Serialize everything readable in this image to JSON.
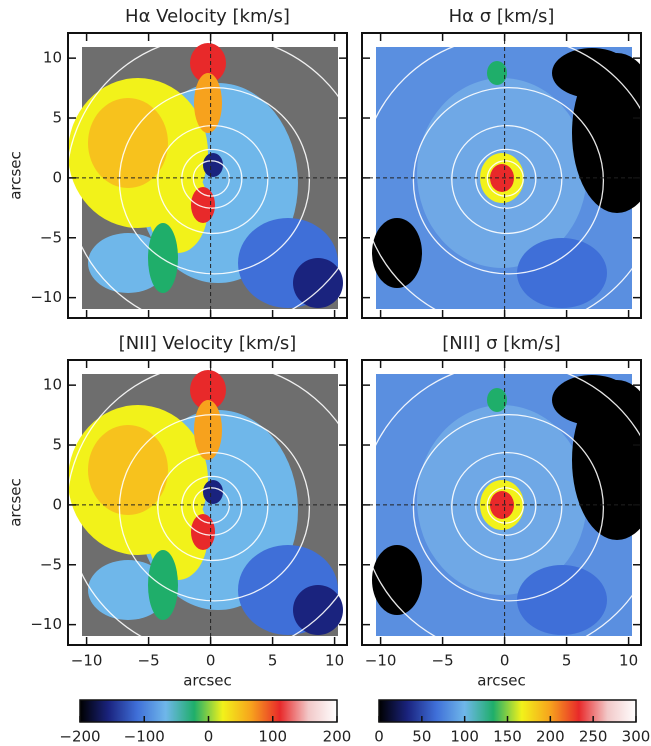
{
  "chart_data": [
    {
      "type": "heatmap",
      "title": "Hα Velocity [km/s]",
      "ylabel": "arcsec",
      "xlim": [
        -11.5,
        11
      ],
      "ylim": [
        -11.7,
        12.1
      ],
      "xticks": [
        -10,
        -5,
        0,
        5,
        10
      ],
      "xtick_labels": false,
      "yticks": [
        {
          "value": -10,
          "label": "−10"
        },
        {
          "value": -5,
          "label": "−5"
        },
        0,
        5,
        10
      ],
      "ytick_labels": true
    },
    {
      "type": "heatmap",
      "title": "Hα σ [km/s]",
      "xlim": [
        -11.5,
        11
      ],
      "ylim": [
        -11.7,
        12.1
      ],
      "xticks": [
        -10,
        -5,
        0,
        5,
        10
      ],
      "xtick_labels": false,
      "yticks": [
        -10,
        -5,
        0,
        5,
        10
      ],
      "ytick_labels": false
    },
    {
      "type": "heatmap",
      "title": "[NII] Velocity [km/s]",
      "ylabel": "arcsec",
      "xlabel": "arcsec",
      "xlim": [
        -11.5,
        11
      ],
      "ylim": [
        -11.7,
        12.1
      ],
      "xticks": [
        {
          "value": -10,
          "label": "−10"
        },
        {
          "value": -5,
          "label": "−5"
        },
        0,
        5,
        10
      ],
      "xtick_labels": true,
      "yticks": [
        {
          "value": -10,
          "label": "−10"
        },
        {
          "value": -5,
          "label": "−5"
        },
        0,
        5,
        10
      ],
      "ytick_labels": true
    },
    {
      "type": "heatmap",
      "title": "[NII] σ [km/s]",
      "xlabel": "arcsec",
      "xlim": [
        -11.5,
        11
      ],
      "ylim": [
        -11.7,
        12.1
      ],
      "xticks": [
        {
          "value": -10,
          "label": "−10"
        },
        {
          "value": -5,
          "label": "−5"
        },
        0,
        5,
        10
      ],
      "xtick_labels": true,
      "yticks": [
        -10,
        -5,
        0,
        5,
        10
      ],
      "ytick_labels": false
    },
    {
      "type": "colorbar",
      "xlim": [
        -200,
        200
      ],
      "colors": [
        "#000000",
        "#1a237e",
        "#3f6fd8",
        "#6fb7ea",
        "#1fae6a",
        "#f2f21a",
        "#f7a21d",
        "#e8292a",
        "#f2c8c8",
        "#ffffff"
      ],
      "xticks": [
        {
          "value": -200,
          "label": "−200"
        },
        {
          "value": -100,
          "label": "−100"
        },
        0,
        100,
        200
      ]
    },
    {
      "type": "colorbar",
      "xlim": [
        0,
        300
      ],
      "colors": [
        "#000000",
        "#1a237e",
        "#3f6fd8",
        "#6fb7ea",
        "#1fae6a",
        "#f2f21a",
        "#f7a21d",
        "#e8292a",
        "#f2c8c8",
        "#ffffff"
      ],
      "xticks": [
        0,
        50,
        100,
        150,
        200,
        250,
        300
      ]
    }
  ]
}
